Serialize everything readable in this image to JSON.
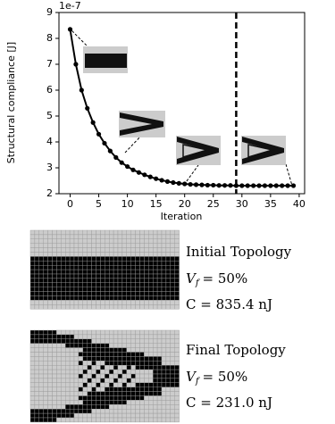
{
  "chart_data": {
    "type": "line",
    "offset_label": "1e-7",
    "xlabel": "Iteration",
    "ylabel": "Structural compliance [J]",
    "x": [
      0,
      1,
      2,
      3,
      4,
      5,
      6,
      7,
      8,
      9,
      10,
      11,
      12,
      13,
      14,
      15,
      16,
      17,
      18,
      19,
      20,
      21,
      22,
      23,
      24,
      25,
      26,
      27,
      28,
      29,
      30,
      31,
      32,
      33,
      34,
      35,
      36,
      37,
      38,
      39
    ],
    "series": [
      {
        "color": "#000000",
        "values": [
          8.35,
          7.0,
          6.0,
          5.3,
          4.75,
          4.3,
          3.95,
          3.65,
          3.4,
          3.2,
          3.05,
          2.92,
          2.82,
          2.73,
          2.65,
          2.58,
          2.52,
          2.47,
          2.43,
          2.4,
          2.38,
          2.36,
          2.35,
          2.34,
          2.33,
          2.33,
          2.32,
          2.32,
          2.32,
          2.31,
          2.31,
          2.31,
          2.31,
          2.31,
          2.31,
          2.31,
          2.31,
          2.31,
          2.31,
          2.31
        ]
      }
    ],
    "xlim": [
      -1.95,
      40.95
    ],
    "ylim": [
      2,
      9
    ],
    "xticks": [
      0,
      5,
      10,
      15,
      20,
      25,
      30,
      35,
      40
    ],
    "yticks": [
      2,
      3,
      4,
      5,
      6,
      7,
      8,
      9
    ],
    "vline": 29
  },
  "panels": [
    {
      "title": "Initial Topology",
      "symbol": "V",
      "subscript": "f",
      "fraction": "= 50%",
      "compliance": "C  = 835.4 nJ"
    },
    {
      "title": "Final Topology",
      "symbol": "V",
      "subscript": "f",
      "fraction": "= 50%",
      "compliance": "C  = 231.0 nJ"
    }
  ]
}
